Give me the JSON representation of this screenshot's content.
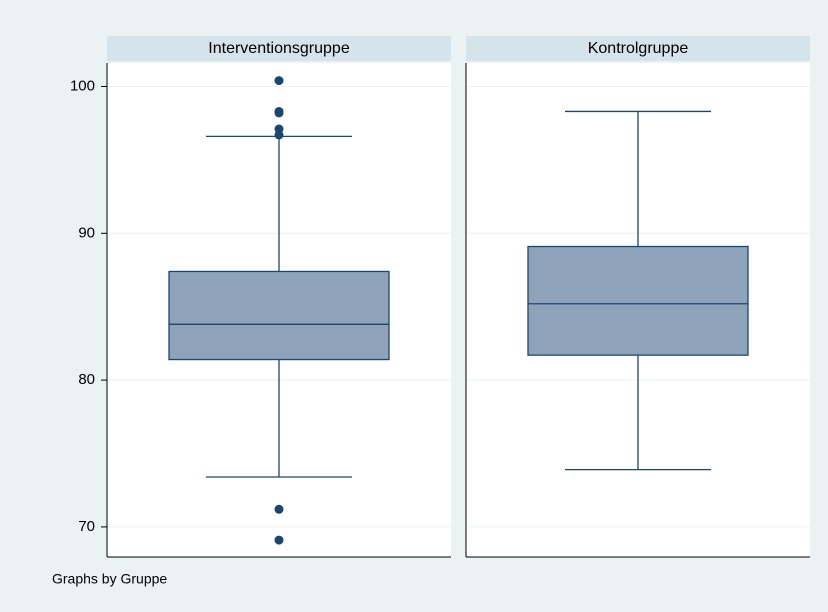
{
  "chart_data": {
    "type": "box",
    "note": "Graphs by Gruppe",
    "ylim": [
      67.95,
      101.6
    ],
    "yticks": [
      70,
      80,
      90,
      100
    ],
    "grid": true,
    "box_color": "#8ea3b9",
    "line_color": "#1a476f",
    "series": [
      {
        "name": "Interventionsgruppe",
        "min": 73.4,
        "q1": 81.4,
        "median": 83.8,
        "q3": 87.4,
        "max": 96.6,
        "outliers": [
          100.4,
          98.3,
          98.2,
          97.1,
          96.7,
          71.2,
          69.1
        ]
      },
      {
        "name": "Kontrolgruppe",
        "min": 73.9,
        "q1": 81.7,
        "median": 85.2,
        "q3": 89.1,
        "max": 98.3,
        "outliers": []
      }
    ]
  }
}
